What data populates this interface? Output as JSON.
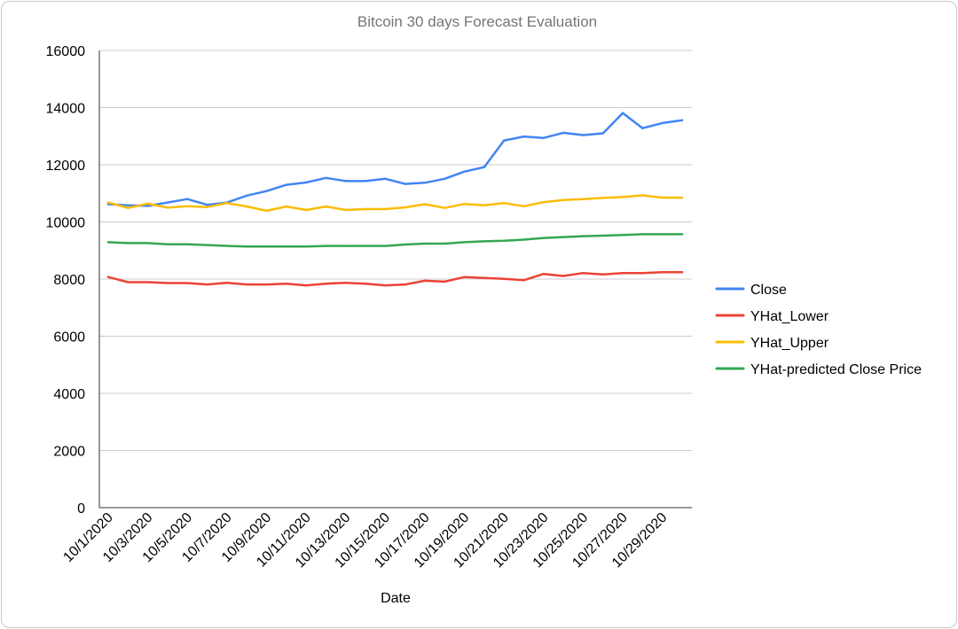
{
  "chart_data": {
    "type": "line",
    "title": "Bitcoin 30 days Forecast Evaluation",
    "xlabel": "Date",
    "ylabel": "",
    "ylim": [
      0,
      16000
    ],
    "y_ticks": [
      0,
      2000,
      4000,
      6000,
      8000,
      10000,
      12000,
      14000,
      16000
    ],
    "grid": "horizontal",
    "legend_position": "right",
    "x": [
      "10/1/2020",
      "10/2/2020",
      "10/3/2020",
      "10/4/2020",
      "10/5/2020",
      "10/6/2020",
      "10/7/2020",
      "10/8/2020",
      "10/9/2020",
      "10/10/2020",
      "10/11/2020",
      "10/12/2020",
      "10/13/2020",
      "10/14/2020",
      "10/15/2020",
      "10/16/2020",
      "10/17/2020",
      "10/18/2020",
      "10/19/2020",
      "10/20/2020",
      "10/21/2020",
      "10/22/2020",
      "10/23/2020",
      "10/24/2020",
      "10/25/2020",
      "10/26/2020",
      "10/27/2020",
      "10/28/2020",
      "10/29/2020",
      "10/30/2020"
    ],
    "x_tick_labels": [
      "10/1/2020",
      "10/3/2020",
      "10/5/2020",
      "10/7/2020",
      "10/9/2020",
      "10/11/2020",
      "10/13/2020",
      "10/15/2020",
      "10/17/2020",
      "10/19/2020",
      "10/21/2020",
      "10/23/2020",
      "10/25/2020",
      "10/27/2020",
      "10/29/2020"
    ],
    "series": [
      {
        "name": "Close",
        "color": "#4285f4",
        "values": [
          10620,
          10580,
          10560,
          10680,
          10800,
          10600,
          10680,
          10920,
          11080,
          11300,
          11380,
          11540,
          11430,
          11430,
          11510,
          11330,
          11370,
          11510,
          11760,
          11920,
          12850,
          12990,
          12940,
          13120,
          13040,
          13100,
          13810,
          13280,
          13460,
          13560
        ]
      },
      {
        "name": "YHat_Lower",
        "color": "#ea4335",
        "values": [
          8070,
          7890,
          7890,
          7860,
          7860,
          7810,
          7870,
          7810,
          7810,
          7840,
          7780,
          7840,
          7870,
          7840,
          7780,
          7810,
          7940,
          7910,
          8070,
          8040,
          8010,
          7960,
          8180,
          8110,
          8210,
          8160,
          8210,
          8210,
          8240,
          8240
        ]
      },
      {
        "name": "YHat_Upper",
        "color": "#fbbc04",
        "values": [
          10680,
          10490,
          10640,
          10500,
          10550,
          10520,
          10660,
          10540,
          10390,
          10540,
          10420,
          10540,
          10420,
          10450,
          10450,
          10510,
          10620,
          10490,
          10630,
          10580,
          10660,
          10550,
          10690,
          10770,
          10800,
          10840,
          10870,
          10930,
          10850,
          10850
        ]
      },
      {
        "name": "YHat-predicted Close Price",
        "color": "#34a853",
        "values": [
          9290,
          9260,
          9260,
          9220,
          9220,
          9190,
          9160,
          9140,
          9140,
          9140,
          9140,
          9160,
          9160,
          9160,
          9160,
          9210,
          9240,
          9240,
          9290,
          9320,
          9340,
          9380,
          9440,
          9470,
          9500,
          9520,
          9540,
          9570,
          9570,
          9570
        ]
      }
    ]
  }
}
